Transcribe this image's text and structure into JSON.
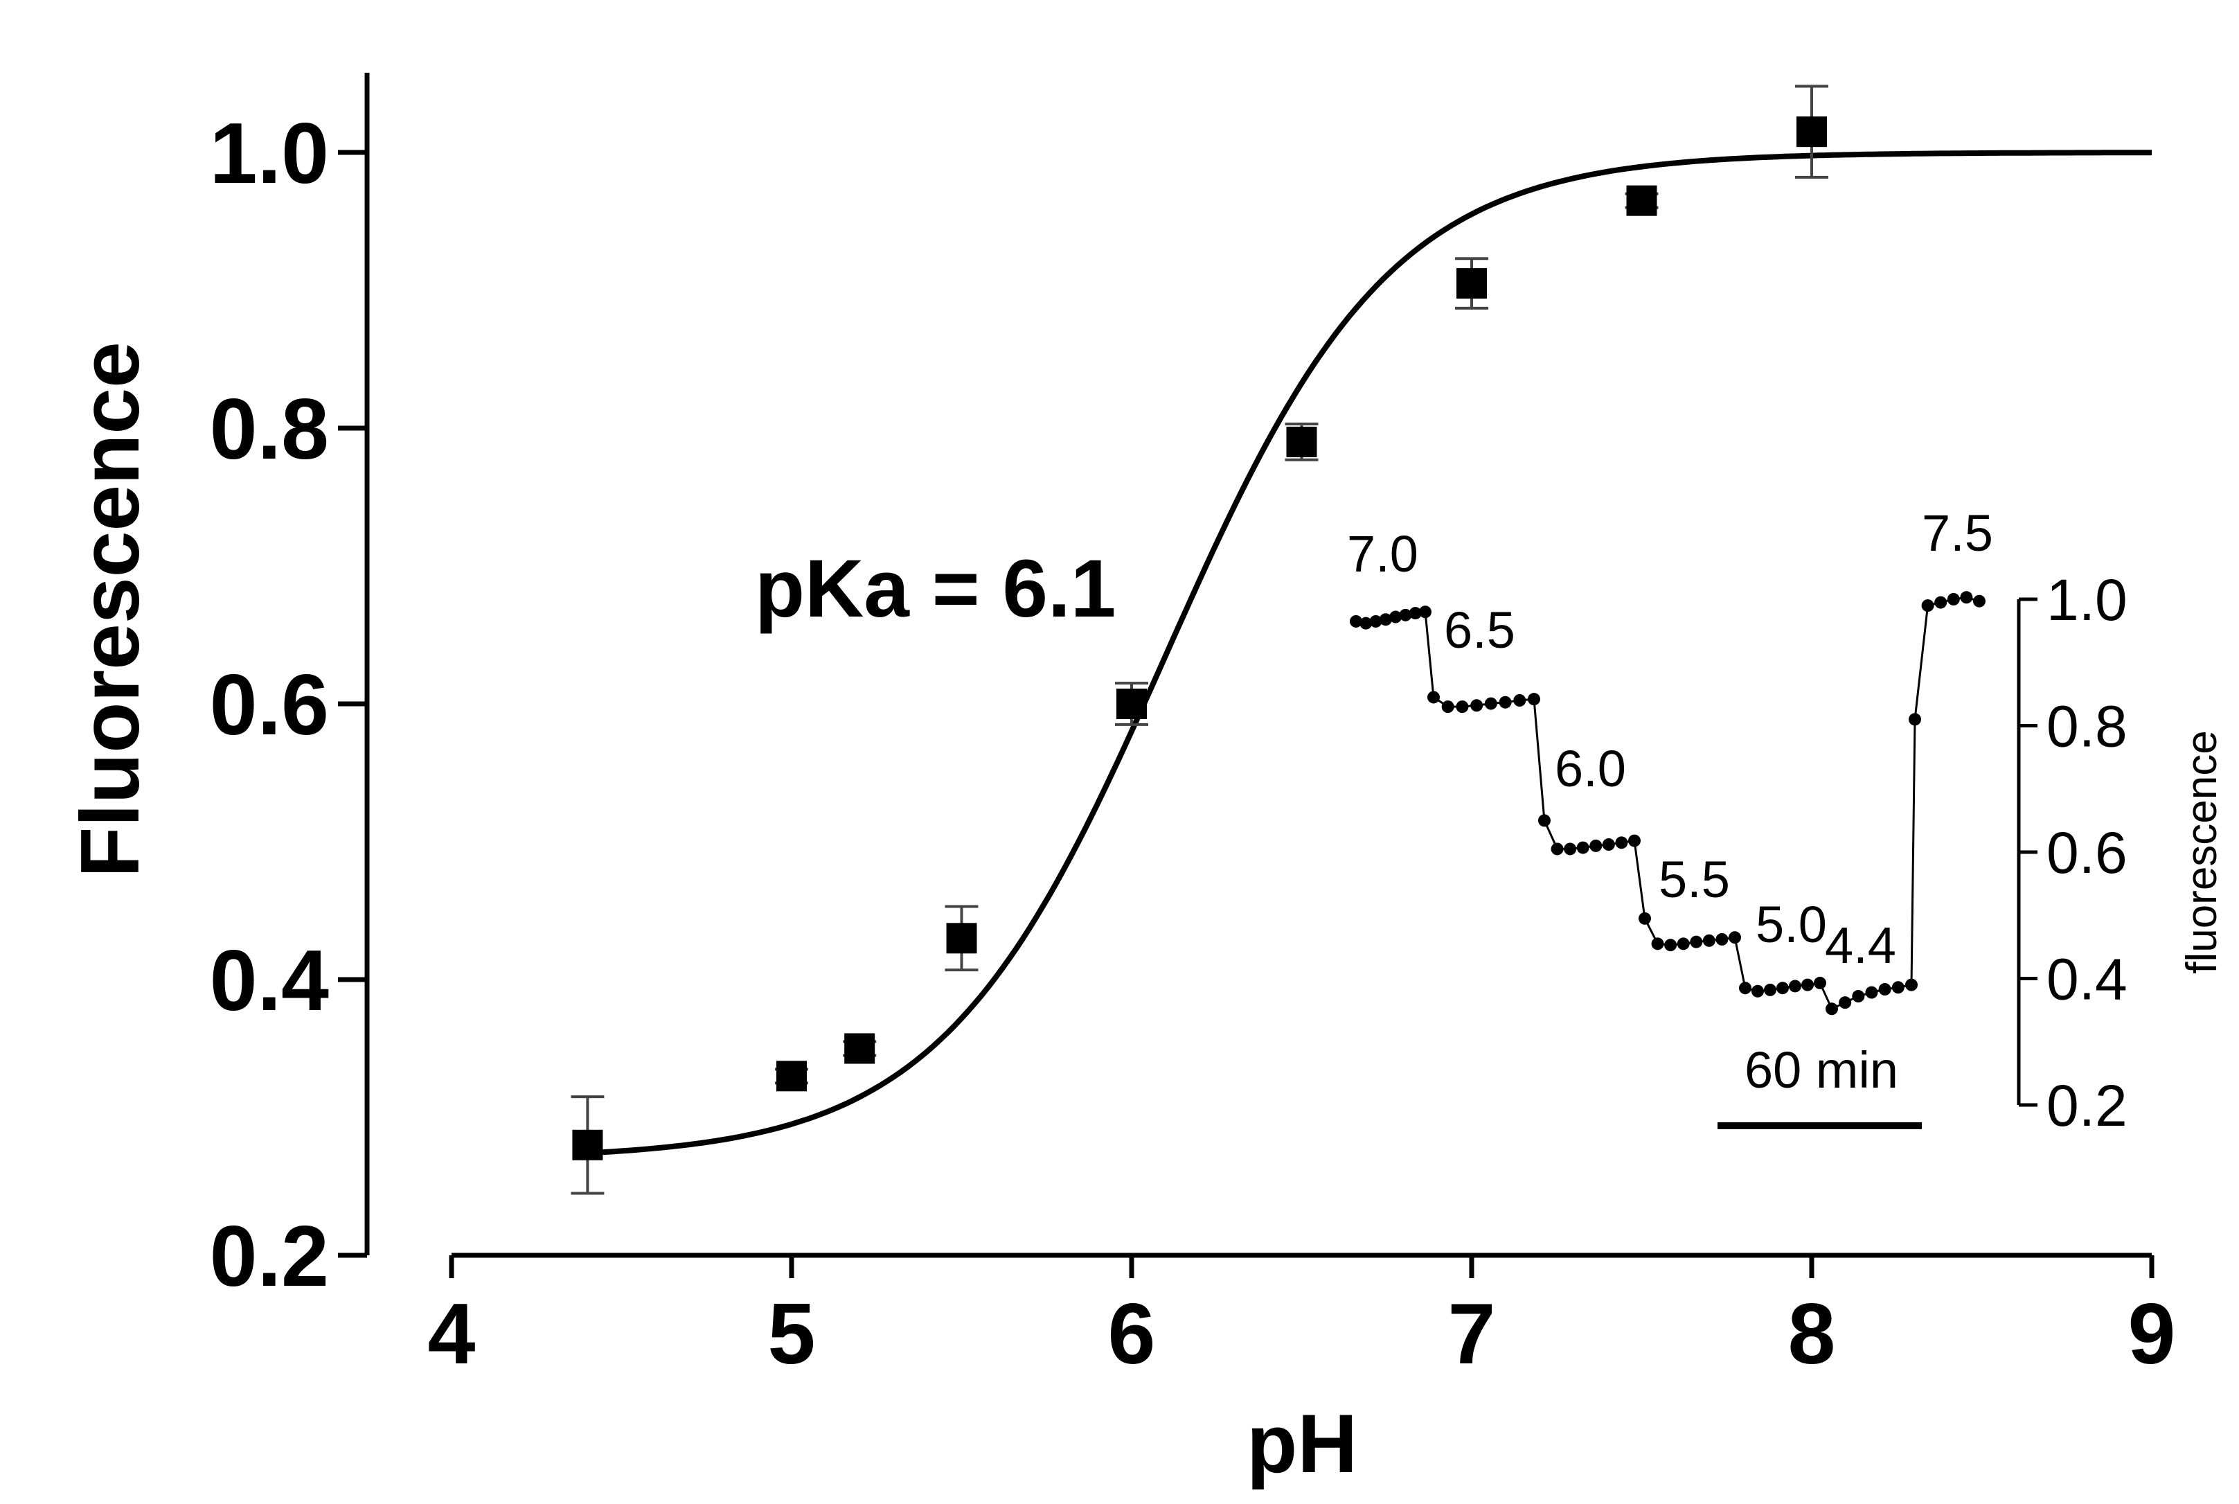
{
  "chart_data": [
    {
      "type": "scatter",
      "xlabel": "pH",
      "ylabel": "Fluorescence",
      "xlim": [
        4,
        9
      ],
      "ylim": [
        0.2,
        1.05
      ],
      "xticks": [
        "4",
        "5",
        "6",
        "7",
        "8",
        "9"
      ],
      "yticks": [
        "0.2",
        "0.4",
        "0.6",
        "0.8",
        "1.0"
      ],
      "annotation": "pKa = 6.1",
      "points": [
        {
          "x": 4.4,
          "y": 0.28,
          "err": 0.035
        },
        {
          "x": 5.0,
          "y": 0.33,
          "err": 0.005
        },
        {
          "x": 5.2,
          "y": 0.35,
          "err": 0.005
        },
        {
          "x": 5.5,
          "y": 0.43,
          "err": 0.023
        },
        {
          "x": 6.0,
          "y": 0.6,
          "err": 0.015
        },
        {
          "x": 6.5,
          "y": 0.79,
          "err": 0.013
        },
        {
          "x": 7.0,
          "y": 0.905,
          "err": 0.018
        },
        {
          "x": 7.5,
          "y": 0.965,
          "err": 0.005
        },
        {
          "x": 8.0,
          "y": 1.015,
          "err": 0.033
        }
      ],
      "fit": {
        "type": "sigmoid",
        "pKa": 6.1,
        "bottom": 0.27,
        "top": 1.0,
        "slope_factor": 0.33
      }
    },
    {
      "type": "line",
      "ylabel": "fluorescence",
      "ylim": [
        0.2,
        1.0
      ],
      "yticks": [
        "0.2",
        "0.4",
        "0.6",
        "0.8",
        "1.0"
      ],
      "scale_bar": "60 min",
      "segments": [
        {
          "label": "7.0",
          "values": [
            0.965,
            0.962,
            0.965,
            0.968,
            0.972,
            0.975,
            0.978,
            0.98
          ]
        },
        {
          "label": "6.5",
          "values": [
            0.845,
            0.83,
            0.83,
            0.832,
            0.835,
            0.837,
            0.84,
            0.842
          ]
        },
        {
          "label": "6.0",
          "values": [
            0.65,
            0.605,
            0.605,
            0.607,
            0.61,
            0.612,
            0.615,
            0.618
          ]
        },
        {
          "label": "5.5",
          "values": [
            0.495,
            0.455,
            0.453,
            0.455,
            0.458,
            0.46,
            0.462,
            0.465
          ]
        },
        {
          "label": "5.0",
          "values": [
            0.385,
            0.38,
            0.382,
            0.385,
            0.388,
            0.39,
            0.393
          ]
        },
        {
          "label": "4.4",
          "values": [
            0.352,
            0.362,
            0.372,
            0.378,
            0.383,
            0.386,
            0.39
          ]
        },
        {
          "label": "7.5",
          "values": [
            0.81,
            0.99,
            0.995,
            1.0,
            1.003,
            0.997
          ]
        }
      ]
    }
  ]
}
